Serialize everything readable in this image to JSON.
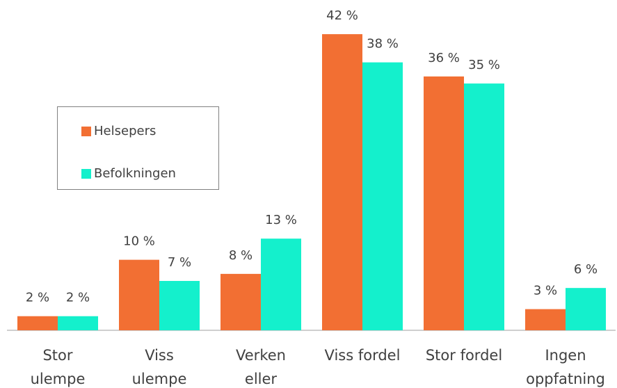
{
  "chart_data": {
    "type": "bar",
    "categories": [
      "Stor\nulempe",
      "Viss\nulempe",
      "Verken\neller",
      "Viss fordel",
      "Stor fordel",
      "Ingen\noppfatning"
    ],
    "series": [
      {
        "name": "Helsepers",
        "color": "#f26f33",
        "values": [
          2,
          10,
          8,
          42,
          36,
          3
        ],
        "value_labels": [
          "2 %",
          "10 %",
          "8 %",
          "42 %",
          "36 %",
          "3 %"
        ]
      },
      {
        "name": "Befolkningen",
        "color": "#14f0cc",
        "values": [
          2,
          7,
          13,
          38,
          35,
          6
        ],
        "value_labels": [
          "2 %",
          "7 %",
          "13 %",
          "38 %",
          "35 %",
          "6 %"
        ]
      }
    ],
    "legend": "left"
  }
}
